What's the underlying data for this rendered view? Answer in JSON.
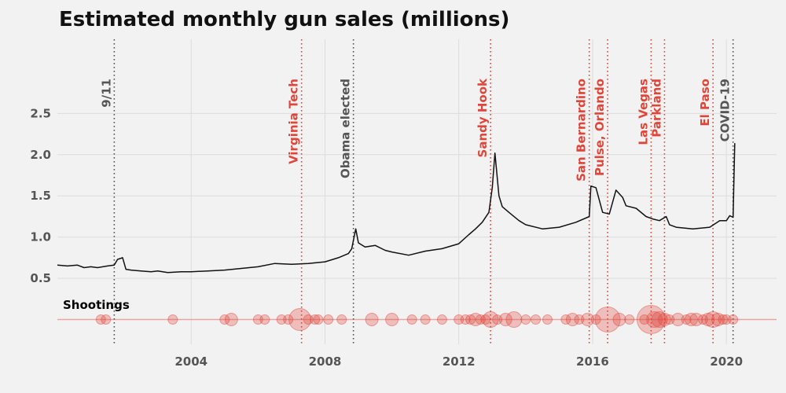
{
  "chart_data": {
    "type": "line",
    "title": "Estimated monthly gun sales (millions)",
    "xlabel": "",
    "ylabel": "",
    "xlim": [
      2000.0,
      2021.5
    ],
    "ylim": [
      -0.3,
      3.4
    ],
    "grid": true,
    "x_ticks": [
      "2004",
      "2008",
      "2012",
      "2016",
      "2020"
    ],
    "y_ticks": [
      "0.5",
      "1.0",
      "1.5",
      "2.0",
      "2.5"
    ],
    "colors": {
      "line": "#111111",
      "shooting": "#e0453a",
      "annotation_gray": "#555555",
      "grid": "#dcdcdc"
    },
    "series": [
      {
        "values": [
          [
            2000.0,
            0.66
          ],
          [
            2000.3,
            0.65
          ],
          [
            2000.6,
            0.66
          ],
          [
            2000.8,
            0.63
          ],
          [
            2001.0,
            0.64
          ],
          [
            2001.2,
            0.63
          ],
          [
            2001.5,
            0.65
          ],
          [
            2001.7,
            0.66
          ],
          [
            2001.8,
            0.73
          ],
          [
            2001.95,
            0.75
          ],
          [
            2002.05,
            0.61
          ],
          [
            2002.2,
            0.6
          ],
          [
            2002.5,
            0.59
          ],
          [
            2002.8,
            0.58
          ],
          [
            2003.0,
            0.59
          ],
          [
            2003.3,
            0.57
          ],
          [
            2003.7,
            0.58
          ],
          [
            2004.0,
            0.58
          ],
          [
            2004.5,
            0.59
          ],
          [
            2005.0,
            0.6
          ],
          [
            2005.5,
            0.62
          ],
          [
            2006.0,
            0.64
          ],
          [
            2006.5,
            0.68
          ],
          [
            2007.0,
            0.67
          ],
          [
            2007.5,
            0.68
          ],
          [
            2008.0,
            0.7
          ],
          [
            2008.4,
            0.75
          ],
          [
            2008.7,
            0.8
          ],
          [
            2008.8,
            0.86
          ],
          [
            2008.92,
            1.1
          ],
          [
            2009.0,
            0.93
          ],
          [
            2009.2,
            0.88
          ],
          [
            2009.5,
            0.9
          ],
          [
            2009.8,
            0.84
          ],
          [
            2010.0,
            0.82
          ],
          [
            2010.5,
            0.78
          ],
          [
            2011.0,
            0.83
          ],
          [
            2011.5,
            0.86
          ],
          [
            2012.0,
            0.92
          ],
          [
            2012.3,
            1.03
          ],
          [
            2012.5,
            1.1
          ],
          [
            2012.7,
            1.18
          ],
          [
            2012.9,
            1.3
          ],
          [
            2013.0,
            1.6
          ],
          [
            2013.08,
            2.02
          ],
          [
            2013.2,
            1.5
          ],
          [
            2013.3,
            1.37
          ],
          [
            2013.5,
            1.3
          ],
          [
            2013.8,
            1.2
          ],
          [
            2014.0,
            1.15
          ],
          [
            2014.5,
            1.1
          ],
          [
            2015.0,
            1.12
          ],
          [
            2015.5,
            1.18
          ],
          [
            2015.9,
            1.25
          ],
          [
            2015.95,
            1.62
          ],
          [
            2016.1,
            1.6
          ],
          [
            2016.3,
            1.3
          ],
          [
            2016.5,
            1.28
          ],
          [
            2016.7,
            1.57
          ],
          [
            2016.9,
            1.48
          ],
          [
            2017.0,
            1.38
          ],
          [
            2017.3,
            1.35
          ],
          [
            2017.6,
            1.25
          ],
          [
            2017.8,
            1.22
          ],
          [
            2018.0,
            1.2
          ],
          [
            2018.2,
            1.25
          ],
          [
            2018.3,
            1.15
          ],
          [
            2018.5,
            1.12
          ],
          [
            2019.0,
            1.1
          ],
          [
            2019.5,
            1.12
          ],
          [
            2019.8,
            1.2
          ],
          [
            2020.0,
            1.2
          ],
          [
            2020.1,
            1.26
          ],
          [
            2020.2,
            1.24
          ],
          [
            2020.25,
            2.14
          ]
        ]
      }
    ],
    "events": [
      {
        "label": "9/11",
        "x": 2001.7,
        "type": "other"
      },
      {
        "label": "Virginia Tech",
        "x": 2007.3,
        "type": "shooting"
      },
      {
        "label": "Obama elected",
        "x": 2008.85,
        "type": "other"
      },
      {
        "label": "Sandy Hook",
        "x": 2012.95,
        "type": "shooting"
      },
      {
        "label": "San Bernardino",
        "x": 2015.9,
        "type": "shooting"
      },
      {
        "label": "Pulse, Orlando",
        "x": 2016.45,
        "type": "shooting"
      },
      {
        "label": "Las Vegas",
        "x": 2017.75,
        "type": "shooting"
      },
      {
        "label": "Parkland",
        "x": 2018.15,
        "type": "shooting"
      },
      {
        "label": "El Paso",
        "x": 2019.6,
        "type": "shooting"
      },
      {
        "label": "COVID-19",
        "x": 2020.2,
        "type": "other"
      }
    ],
    "shootings": {
      "label": "Shootings",
      "points": [
        [
          2001.3,
          6
        ],
        [
          2001.45,
          6
        ],
        [
          2003.45,
          6
        ],
        [
          2005.0,
          6
        ],
        [
          2005.2,
          8
        ],
        [
          2006.0,
          6
        ],
        [
          2006.2,
          6
        ],
        [
          2006.7,
          6
        ],
        [
          2006.9,
          6
        ],
        [
          2007.25,
          14
        ],
        [
          2007.5,
          6
        ],
        [
          2007.7,
          6
        ],
        [
          2007.8,
          6
        ],
        [
          2008.1,
          6
        ],
        [
          2008.5,
          6
        ],
        [
          2009.4,
          8
        ],
        [
          2010.0,
          8
        ],
        [
          2010.6,
          6
        ],
        [
          2011.0,
          6
        ],
        [
          2011.5,
          6
        ],
        [
          2012.0,
          6
        ],
        [
          2012.2,
          6
        ],
        [
          2012.35,
          6
        ],
        [
          2012.5,
          8
        ],
        [
          2012.65,
          6
        ],
        [
          2012.8,
          6
        ],
        [
          2012.95,
          10
        ],
        [
          2013.15,
          6
        ],
        [
          2013.4,
          8
        ],
        [
          2013.65,
          10
        ],
        [
          2014.0,
          6
        ],
        [
          2014.3,
          6
        ],
        [
          2014.65,
          6
        ],
        [
          2015.2,
          6
        ],
        [
          2015.4,
          8
        ],
        [
          2015.6,
          6
        ],
        [
          2015.85,
          8
        ],
        [
          2016.1,
          6
        ],
        [
          2016.45,
          16
        ],
        [
          2016.8,
          8
        ],
        [
          2017.1,
          6
        ],
        [
          2017.55,
          6
        ],
        [
          2017.75,
          18
        ],
        [
          2017.85,
          10
        ],
        [
          2018.0,
          10
        ],
        [
          2018.15,
          8
        ],
        [
          2018.3,
          6
        ],
        [
          2018.55,
          8
        ],
        [
          2018.8,
          6
        ],
        [
          2018.95,
          8
        ],
        [
          2019.1,
          8
        ],
        [
          2019.3,
          6
        ],
        [
          2019.45,
          8
        ],
        [
          2019.6,
          10
        ],
        [
          2019.75,
          8
        ],
        [
          2019.9,
          6
        ],
        [
          2020.0,
          6
        ],
        [
          2020.2,
          6
        ]
      ]
    }
  }
}
